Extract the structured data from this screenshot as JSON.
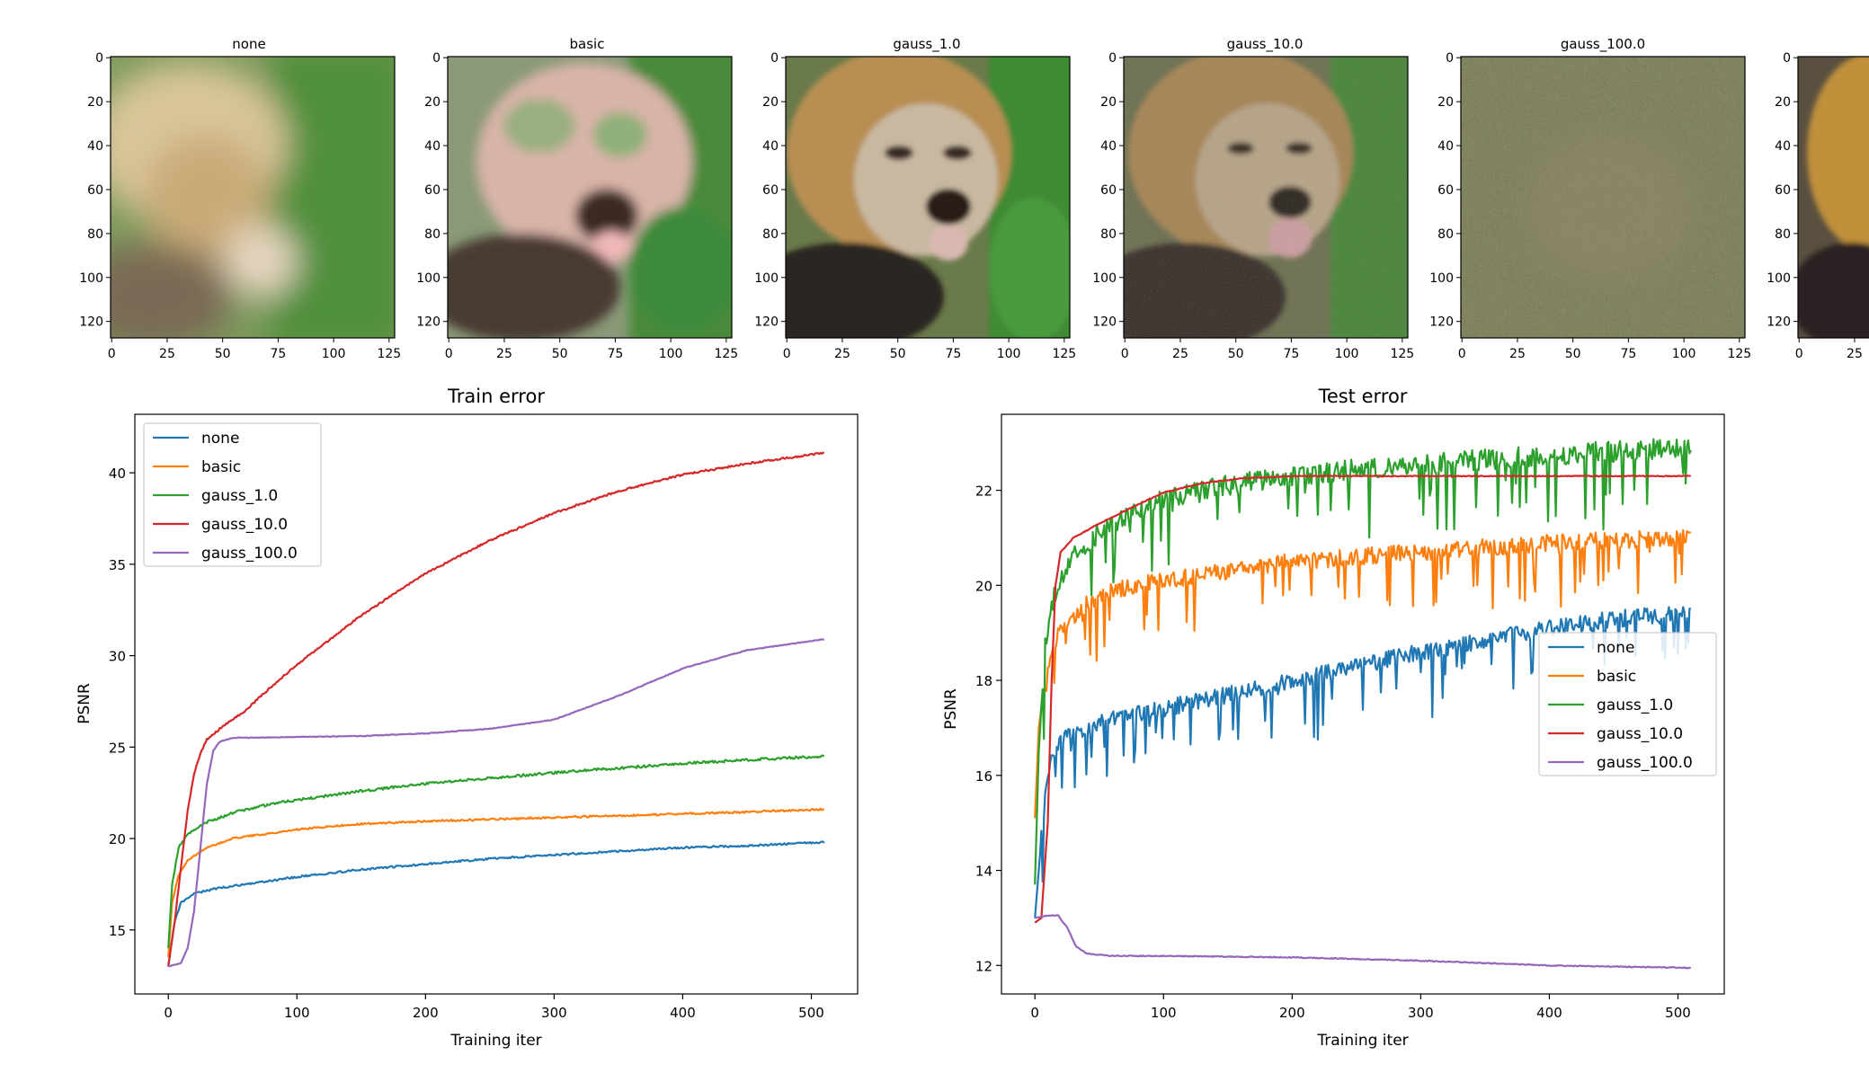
{
  "images": [
    {
      "title": "none"
    },
    {
      "title": "basic"
    },
    {
      "title": "gauss_1.0"
    },
    {
      "title": "gauss_10.0"
    },
    {
      "title": "gauss_100.0"
    },
    {
      "title": ""
    }
  ],
  "image_axis": {
    "x_ticks": [
      0,
      25,
      50,
      75,
      100,
      125
    ],
    "y_ticks": [
      0,
      20,
      40,
      60,
      80,
      100,
      120
    ],
    "x_range": [
      0,
      128
    ],
    "y_range": [
      0,
      128
    ]
  },
  "colors": {
    "none": "#1f77b4",
    "basic": "#ff7f0e",
    "gauss_1.0": "#2ca02c",
    "gauss_10.0": "#d62728",
    "gauss_100.0": "#9467bd"
  },
  "chart_data": [
    {
      "type": "line",
      "title": "Train error",
      "xlabel": "Training iter",
      "ylabel": "PSNR",
      "xlim": [
        -26,
        536
      ],
      "ylim": [
        11.5,
        43.2
      ],
      "x_ticks": [
        0,
        100,
        200,
        300,
        400,
        500
      ],
      "y_ticks": [
        15,
        20,
        25,
        30,
        35,
        40
      ],
      "legend_position": "upper-left",
      "series": [
        {
          "name": "none",
          "points": [
            [
              0,
              13.0
            ],
            [
              5,
              15.5
            ],
            [
              10,
              16.5
            ],
            [
              20,
              17.0
            ],
            [
              40,
              17.3
            ],
            [
              70,
              17.6
            ],
            [
              100,
              17.9
            ],
            [
              150,
              18.3
            ],
            [
              200,
              18.6
            ],
            [
              250,
              18.9
            ],
            [
              300,
              19.1
            ],
            [
              350,
              19.3
            ],
            [
              400,
              19.5
            ],
            [
              450,
              19.6
            ],
            [
              510,
              19.8
            ]
          ]
        },
        {
          "name": "basic",
          "points": [
            [
              0,
              13.5
            ],
            [
              3,
              16.5
            ],
            [
              8,
              18.0
            ],
            [
              15,
              18.8
            ],
            [
              30,
              19.5
            ],
            [
              50,
              20.0
            ],
            [
              80,
              20.3
            ],
            [
              100,
              20.5
            ],
            [
              150,
              20.8
            ],
            [
              200,
              20.95
            ],
            [
              250,
              21.05
            ],
            [
              300,
              21.15
            ],
            [
              350,
              21.25
            ],
            [
              400,
              21.35
            ],
            [
              450,
              21.45
            ],
            [
              510,
              21.6
            ]
          ]
        },
        {
          "name": "gauss_1.0",
          "points": [
            [
              0,
              14.0
            ],
            [
              3,
              17.5
            ],
            [
              8,
              19.5
            ],
            [
              15,
              20.2
            ],
            [
              30,
              20.9
            ],
            [
              50,
              21.4
            ],
            [
              80,
              21.9
            ],
            [
              100,
              22.1
            ],
            [
              150,
              22.6
            ],
            [
              200,
              23.0
            ],
            [
              250,
              23.3
            ],
            [
              300,
              23.6
            ],
            [
              350,
              23.85
            ],
            [
              400,
              24.1
            ],
            [
              450,
              24.3
            ],
            [
              510,
              24.5
            ]
          ]
        },
        {
          "name": "gauss_10.0",
          "points": [
            [
              0,
              13.0
            ],
            [
              5,
              15.5
            ],
            [
              10,
              18.5
            ],
            [
              15,
              21.5
            ],
            [
              20,
              23.5
            ],
            [
              25,
              24.7
            ],
            [
              30,
              25.4
            ],
            [
              40,
              26.0
            ],
            [
              60,
              27.0
            ],
            [
              80,
              28.3
            ],
            [
              100,
              29.5
            ],
            [
              150,
              32.2
            ],
            [
              200,
              34.5
            ],
            [
              250,
              36.3
            ],
            [
              300,
              37.8
            ],
            [
              350,
              39.0
            ],
            [
              400,
              39.9
            ],
            [
              450,
              40.5
            ],
            [
              510,
              41.1
            ]
          ]
        },
        {
          "name": "gauss_100.0",
          "points": [
            [
              0,
              13.0
            ],
            [
              10,
              13.2
            ],
            [
              15,
              14.0
            ],
            [
              20,
              16.0
            ],
            [
              25,
              19.5
            ],
            [
              30,
              23.0
            ],
            [
              35,
              24.8
            ],
            [
              40,
              25.3
            ],
            [
              50,
              25.5
            ],
            [
              100,
              25.55
            ],
            [
              150,
              25.6
            ],
            [
              200,
              25.75
            ],
            [
              250,
              26.0
            ],
            [
              300,
              26.5
            ],
            [
              350,
              27.8
            ],
            [
              400,
              29.3
            ],
            [
              450,
              30.3
            ],
            [
              510,
              30.9
            ]
          ]
        }
      ]
    },
    {
      "type": "line",
      "title": "Test error",
      "xlabel": "Training iter",
      "ylabel": "PSNR",
      "xlim": [
        -26,
        536
      ],
      "ylim": [
        11.4,
        23.6
      ],
      "x_ticks": [
        0,
        100,
        200,
        300,
        400,
        500
      ],
      "y_ticks": [
        12,
        14,
        16,
        18,
        20,
        22
      ],
      "legend_position": "center-right",
      "series": [
        {
          "name": "none",
          "points": [
            [
              0,
              13.0
            ],
            [
              3,
              14.0
            ],
            [
              6,
              15.0
            ],
            [
              10,
              16.0
            ],
            [
              15,
              16.5
            ],
            [
              20,
              16.8
            ],
            [
              40,
              17.0
            ],
            [
              60,
              17.2
            ],
            [
              100,
              17.4
            ],
            [
              150,
              17.7
            ],
            [
              200,
              18.0
            ],
            [
              250,
              18.3
            ],
            [
              300,
              18.6
            ],
            [
              350,
              18.85
            ],
            [
              400,
              19.1
            ],
            [
              450,
              19.3
            ],
            [
              510,
              19.4
            ]
          ]
        },
        {
          "name": "basic",
          "points": [
            [
              0,
              15.1
            ],
            [
              3,
              17.0
            ],
            [
              8,
              18.0
            ],
            [
              15,
              18.8
            ],
            [
              25,
              19.2
            ],
            [
              40,
              19.6
            ],
            [
              60,
              19.9
            ],
            [
              100,
              20.1
            ],
            [
              150,
              20.3
            ],
            [
              200,
              20.5
            ],
            [
              250,
              20.6
            ],
            [
              300,
              20.7
            ],
            [
              350,
              20.8
            ],
            [
              400,
              20.9
            ],
            [
              450,
              20.95
            ],
            [
              510,
              21.0
            ]
          ]
        },
        {
          "name": "gauss_1.0",
          "points": [
            [
              0,
              13.7
            ],
            [
              3,
              16.5
            ],
            [
              8,
              18.8
            ],
            [
              15,
              19.8
            ],
            [
              25,
              20.4
            ],
            [
              40,
              20.9
            ],
            [
              60,
              21.3
            ],
            [
              100,
              21.8
            ],
            [
              150,
              22.1
            ],
            [
              200,
              22.3
            ],
            [
              250,
              22.45
            ],
            [
              300,
              22.55
            ],
            [
              350,
              22.65
            ],
            [
              400,
              22.75
            ],
            [
              450,
              22.82
            ],
            [
              510,
              22.9
            ]
          ]
        },
        {
          "name": "gauss_10.0",
          "points": [
            [
              0,
              12.9
            ],
            [
              5,
              13.0
            ],
            [
              10,
              15.0
            ],
            [
              13,
              18.0
            ],
            [
              16,
              20.0
            ],
            [
              20,
              20.7
            ],
            [
              30,
              21.0
            ],
            [
              50,
              21.3
            ],
            [
              80,
              21.7
            ],
            [
              100,
              21.95
            ],
            [
              130,
              22.15
            ],
            [
              160,
              22.25
            ],
            [
              200,
              22.3
            ],
            [
              300,
              22.3
            ],
            [
              400,
              22.3
            ],
            [
              510,
              22.3
            ]
          ]
        },
        {
          "name": "gauss_100.0",
          "points": [
            [
              0,
              13.0
            ],
            [
              10,
              13.05
            ],
            [
              18,
              13.05
            ],
            [
              25,
              12.8
            ],
            [
              32,
              12.4
            ],
            [
              40,
              12.25
            ],
            [
              60,
              12.2
            ],
            [
              100,
              12.2
            ],
            [
              200,
              12.17
            ],
            [
              300,
              12.1
            ],
            [
              400,
              12.0
            ],
            [
              510,
              11.95
            ]
          ]
        }
      ]
    }
  ]
}
